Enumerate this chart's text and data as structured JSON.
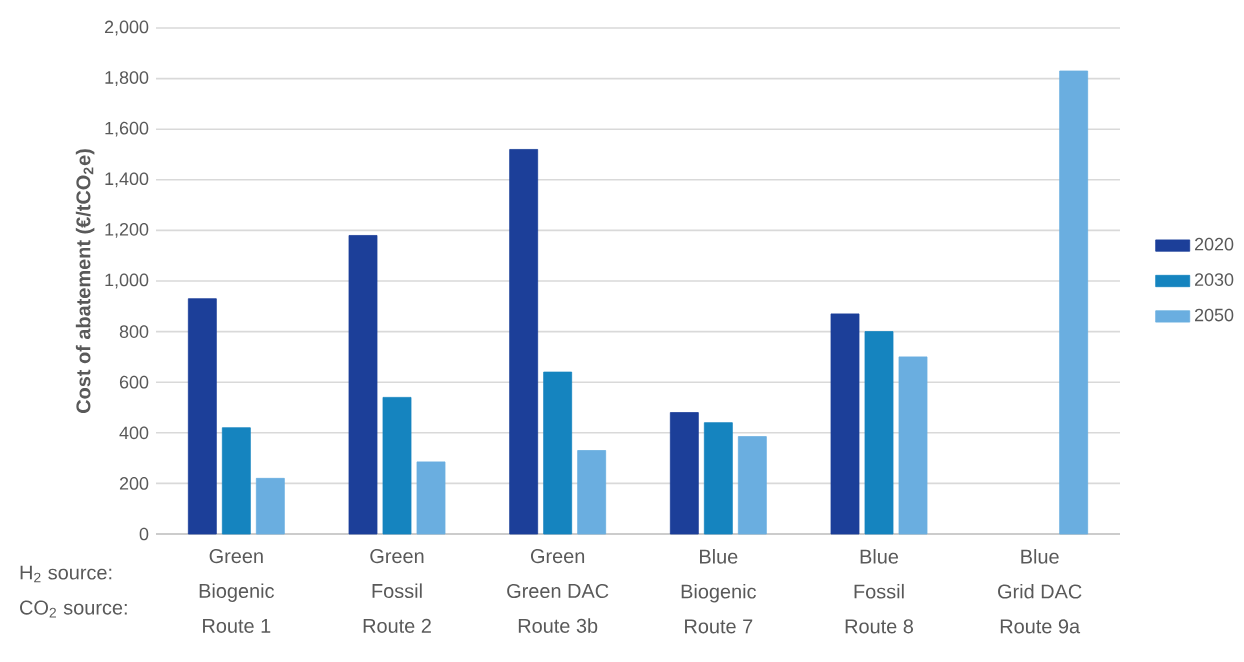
{
  "chart_data": {
    "type": "bar",
    "ylabel": "Cost of abatement (€/tCO$_{2}$e)",
    "categories": [
      "Green\nBiogenic\nRoute 1",
      "Green\nFossil\nRoute 2",
      "Green\nGreen DAC\nRoute 3b",
      "Blue\nBiogenic\nRoute 7",
      "Blue\nFossil\nRoute 8",
      "Blue\nGrid DAC\nRoute 9a"
    ],
    "series": [
      {
        "name": "2020",
        "color": "#1c3f99",
        "values": [
          930,
          1180,
          1520,
          480,
          870,
          null
        ]
      },
      {
        "name": "2030",
        "color": "#1584bf",
        "values": [
          420,
          540,
          640,
          440,
          800,
          null
        ]
      },
      {
        "name": "2050",
        "color": "#6aaee0",
        "values": [
          220,
          285,
          330,
          385,
          700,
          1830
        ]
      }
    ],
    "ylim": [
      0,
      2000
    ],
    "yticks": [
      {
        "value": 0,
        "label": "0"
      },
      {
        "value": 200,
        "label": "200"
      },
      {
        "value": 400,
        "label": "400"
      },
      {
        "value": 600,
        "label": "600"
      },
      {
        "value": 800,
        "label": "800"
      },
      {
        "value": 1000,
        "label": "1,000"
      },
      {
        "value": 1200,
        "label": "1,200"
      },
      {
        "value": 1400,
        "label": "1,400"
      },
      {
        "value": 1600,
        "label": "1,600"
      },
      {
        "value": 1800,
        "label": "1,800"
      },
      {
        "value": 2000,
        "label": "2,000"
      }
    ],
    "grid": "y",
    "legend": "right",
    "annotations": [
      "H$_{2}$ source:",
      "CO$_{2}$ source:"
    ]
  }
}
